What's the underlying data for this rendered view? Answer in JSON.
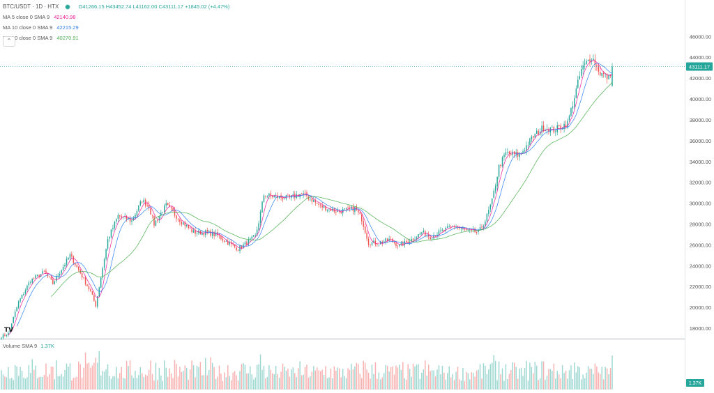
{
  "legend": {
    "symbol": "BTC/USDT · 1D · HTX",
    "ohlc": "O41266.15  H43452.74  L41162.00  C43111.17  +1845.02 (+4.47%)",
    "ma5": {
      "label": "MA 5 close 0 SMA 9",
      "value": "42140.98",
      "color": "#e91e9e"
    },
    "ma10": {
      "label": "MA 10 close 0 SMA 9",
      "value": "42215.29",
      "color": "#2f7ff0"
    },
    "ma30": {
      "label": "MA 30 close 0 SMA 9",
      "value": "40270.91",
      "color": "#4caf50"
    }
  },
  "volume": {
    "label": "Volume SMA 9",
    "value": "1.37K"
  },
  "price_axis": {
    "ticks": [
      "46000.00",
      "44000.00",
      "42000.00",
      "40000.00",
      "38000.00",
      "36000.00",
      "34000.00",
      "32000.00",
      "30000.00",
      "28000.00",
      "26000.00",
      "24000.00",
      "22000.00",
      "20000.00",
      "18000.00"
    ],
    "last_price_label": "43111.17",
    "volume_tag": "1.37K"
  },
  "colors": {
    "up": "#26a69a",
    "down": "#ef5350",
    "ma5": "#e91e9e",
    "ma10": "#2f7ff0",
    "ma30": "#4caf50",
    "axis_text": "#555555"
  },
  "chart_data": {
    "type": "candlestick",
    "symbol": "BTC/USDT",
    "interval": "1D",
    "exchange": "HTX",
    "ylim": [
      17000,
      49500
    ],
    "last_price": 43111.17,
    "anchors": [
      [
        0,
        17200
      ],
      [
        4,
        17500
      ],
      [
        10,
        20500
      ],
      [
        17,
        22600
      ],
      [
        25,
        23400
      ],
      [
        30,
        22300
      ],
      [
        40,
        25000
      ],
      [
        46,
        23300
      ],
      [
        52,
        21500
      ],
      [
        55,
        20200
      ],
      [
        62,
        26500
      ],
      [
        68,
        28800
      ],
      [
        76,
        28300
      ],
      [
        82,
        30300
      ],
      [
        86,
        29700
      ],
      [
        89,
        28000
      ],
      [
        96,
        29800
      ],
      [
        104,
        28400
      ],
      [
        112,
        27200
      ],
      [
        120,
        27200
      ],
      [
        126,
        26900
      ],
      [
        132,
        26200
      ],
      [
        138,
        25600
      ],
      [
        143,
        26200
      ],
      [
        148,
        26800
      ],
      [
        150,
        28200
      ],
      [
        153,
        30800
      ],
      [
        160,
        30600
      ],
      [
        168,
        30500
      ],
      [
        174,
        30900
      ],
      [
        178,
        30700
      ],
      [
        186,
        29700
      ],
      [
        196,
        29200
      ],
      [
        206,
        29500
      ],
      [
        210,
        28500
      ],
      [
        214,
        26200
      ],
      [
        220,
        26200
      ],
      [
        226,
        26500
      ],
      [
        232,
        25900
      ],
      [
        240,
        26600
      ],
      [
        245,
        27200
      ],
      [
        250,
        26800
      ],
      [
        258,
        27400
      ],
      [
        264,
        27800
      ],
      [
        270,
        27400
      ],
      [
        278,
        27200
      ],
      [
        282,
        28300
      ],
      [
        286,
        30200
      ],
      [
        290,
        33500
      ],
      [
        294,
        34800
      ],
      [
        302,
        34600
      ],
      [
        310,
        36400
      ],
      [
        316,
        37300
      ],
      [
        322,
        37000
      ],
      [
        330,
        37700
      ],
      [
        334,
        40200
      ],
      [
        338,
        42800
      ],
      [
        344,
        44100
      ],
      [
        349,
        42500
      ],
      [
        354,
        42000
      ],
      [
        356,
        43111
      ]
    ],
    "ma_periods": [
      5,
      10,
      30
    ],
    "volume_series": "Volume SMA 9",
    "volume_last": "1.37K"
  }
}
